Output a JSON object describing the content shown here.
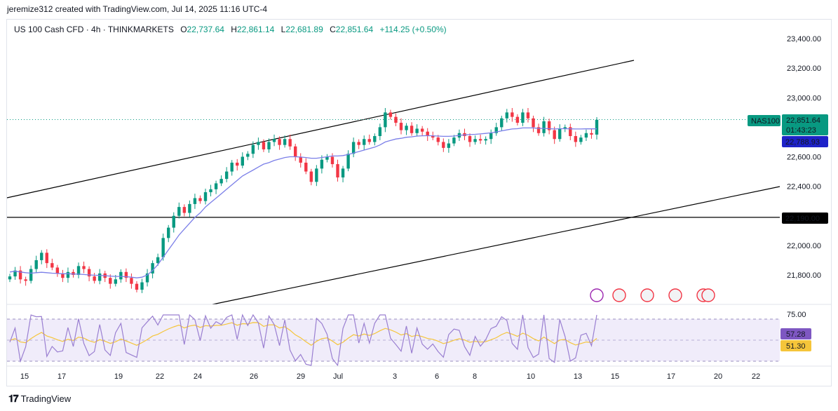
{
  "credit": "jeremize312 created with TradingView.com, Jul 14, 2025 11:16 UTC-4",
  "header": {
    "symbol": "US 100 Cash CFD · 4h · THINKMARKETS",
    "o_label": "O",
    "o_value": "22,737.64",
    "h_label": "H",
    "h_value": "22,861.14",
    "l_label": "L",
    "l_value": "22,681.89",
    "c_label": "C",
    "c_value": "22,851.64",
    "change": "+114.25 (+0.50%)"
  },
  "footer": {
    "brand": "TradingView",
    "logo": "tradingview-logo"
  },
  "colors": {
    "up": "#089981",
    "down": "#f23645",
    "ma": "#7b7fe8",
    "ma2": "#f7b55a",
    "rsi": "#9a7fd1",
    "rsi_ma": "#f5c53a",
    "level": "#000000"
  },
  "chart_data": [
    {
      "type": "candlestick",
      "title": "US 100 Cash CFD · 4h · THINKMARKETS",
      "price_ticks": [
        "23,400.00",
        "23,200.00",
        "23,000.00",
        "22,800.00",
        "22,600.00",
        "22,400.00",
        "22,000.00",
        "21,800.00"
      ],
      "x_ticks": [
        "15",
        "17",
        "19",
        "22",
        "24",
        "26",
        "29",
        "Jul",
        "3",
        "6",
        "8",
        "10",
        "13",
        "15",
        "17",
        "20",
        "22"
      ],
      "ylim": [
        21730,
        23480
      ],
      "price_labels": {
        "symbol_tag": "NAS100",
        "last_price": "22,851.64",
        "countdown": "01:43:23",
        "ma_value": "22,788.93",
        "level_value": "22,190.00"
      },
      "horizontal_level": 22190,
      "channel_upper": {
        "from": [
          "Jun 13",
          22330
        ],
        "to": [
          "Jul 16",
          23250
        ]
      },
      "channel_lower": {
        "from": [
          "Jun 24",
          21700
        ],
        "to": [
          "Jul 22",
          22400
        ]
      },
      "close": [
        21790,
        21830,
        21770,
        21760,
        21840,
        21900,
        21950,
        21880,
        21850,
        21810,
        21780,
        21820,
        21800,
        21860,
        21840,
        21790,
        21760,
        21810,
        21780,
        21740,
        21770,
        21820,
        21780,
        21740,
        21700,
        21750,
        21810,
        21880,
        21920,
        22050,
        22120,
        22200,
        22260,
        22220,
        22280,
        22320,
        22300,
        22360,
        22380,
        22420,
        22450,
        22500,
        22560,
        22540,
        22600,
        22620,
        22680,
        22700,
        22650,
        22700,
        22720,
        22680,
        22720,
        22670,
        22600,
        22560,
        22500,
        22430,
        22520,
        22580,
        22600,
        22550,
        22460,
        22520,
        22620,
        22700,
        22680,
        22720,
        22700,
        22740,
        22800,
        22900,
        22870,
        22830,
        22780,
        22810,
        22760,
        22790,
        22770,
        22740,
        22730,
        22700,
        22660,
        22690,
        22730,
        22760,
        22740,
        22700,
        22720,
        22710,
        22720,
        22760,
        22800,
        22860,
        22900,
        22870,
        22830,
        22900,
        22860,
        22800,
        22760,
        22840,
        22780,
        22720,
        22790,
        22800,
        22740,
        22700,
        22730,
        22760,
        22750,
        22850
      ],
      "ma": [
        21820,
        21825,
        21820,
        21815,
        21812,
        21815,
        21818,
        21815,
        21812,
        21810,
        21808,
        21808,
        21806,
        21805,
        21803,
        21800,
        21798,
        21797,
        21795,
        21792,
        21790,
        21790,
        21788,
        21785,
        21780,
        21785,
        21800,
        21830,
        21870,
        21920,
        21970,
        22020,
        22070,
        22110,
        22150,
        22190,
        22220,
        22260,
        22290,
        22320,
        22350,
        22380,
        22410,
        22440,
        22470,
        22490,
        22510,
        22530,
        22550,
        22560,
        22575,
        22585,
        22595,
        22600,
        22600,
        22598,
        22595,
        22590,
        22590,
        22595,
        22600,
        22605,
        22605,
        22608,
        22615,
        22625,
        22635,
        22645,
        22655,
        22665,
        22680,
        22700,
        22710,
        22720,
        22725,
        22732,
        22735,
        22740,
        22742,
        22743,
        22742,
        22740,
        22738,
        22738,
        22740,
        22745,
        22748,
        22750,
        22752,
        22755,
        22758,
        22762,
        22768,
        22775,
        22782,
        22788,
        22790,
        22795,
        22795,
        22795,
        22792,
        22792,
        22790,
        22788,
        22790,
        22790,
        22789,
        22788,
        22788,
        22789,
        22789,
        22789
      ],
      "rsi": {
        "ylabel": "75.00",
        "value": "57.28",
        "ma_value": "51.30",
        "upper": 70,
        "lower": 30
      }
    }
  ]
}
